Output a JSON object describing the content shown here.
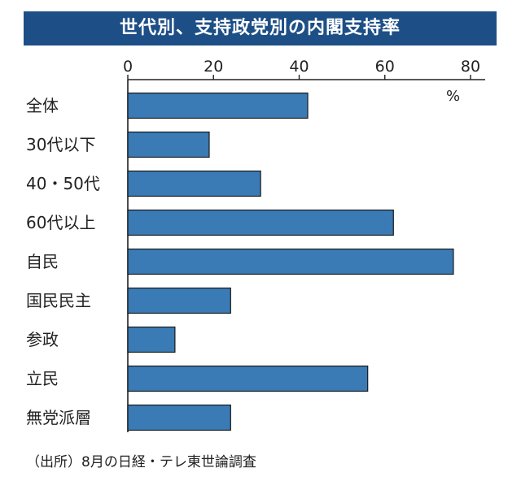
{
  "title": "世代別、支持政党別の内閣支持率",
  "source": "（出所）8月の日経・テレ東世論調査",
  "chart_data": {
    "type": "bar",
    "orientation": "horizontal",
    "title": "世代別、支持政党別の内閣支持率",
    "unit": "%",
    "xlim": [
      0,
      80
    ],
    "xticks": [
      0,
      20,
      40,
      60,
      80
    ],
    "categories": [
      "全体",
      "30代以下",
      "40・50代",
      "60代以上",
      "自民",
      "国民民主",
      "参政",
      "立民",
      "無党派層"
    ],
    "values": [
      42,
      19,
      31,
      62,
      76,
      24,
      11,
      56,
      24
    ],
    "bar_color": "#3a7ab5",
    "axis_position": "top"
  }
}
